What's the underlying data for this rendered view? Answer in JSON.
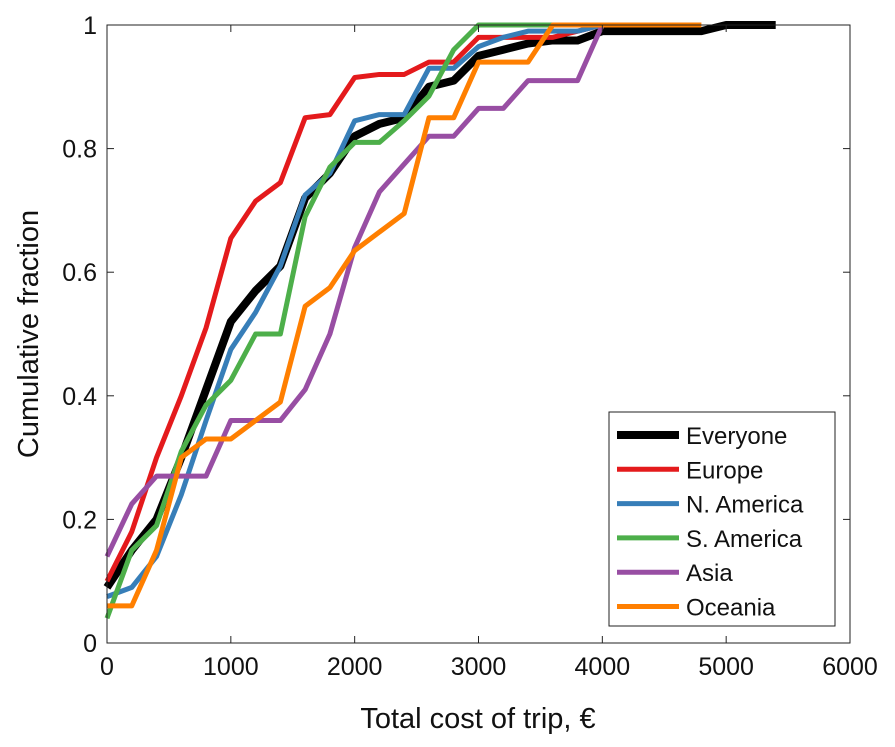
{
  "chart_data": {
    "type": "line",
    "title": "",
    "xlabel": "Total cost of trip, €",
    "ylabel": "Cumulative fraction",
    "xlim": [
      0,
      6000
    ],
    "ylim": [
      0,
      1
    ],
    "xticks": [
      0,
      1000,
      2000,
      3000,
      4000,
      5000,
      6000
    ],
    "xtick_labels": [
      "0",
      "1000",
      "2000",
      "3000",
      "4000",
      "5000",
      "6000"
    ],
    "yticks": [
      0,
      0.2,
      0.4,
      0.6,
      0.8,
      1
    ],
    "ytick_labels": [
      "0",
      "0.2",
      "0.4",
      "0.6",
      "0.8",
      "1"
    ],
    "grid": false,
    "legend_position": "bottom-right",
    "series": [
      {
        "name": "Everyone",
        "color": "#000000",
        "width": "thick",
        "x": [
          0,
          200,
          400,
          600,
          800,
          1000,
          1200,
          1400,
          1600,
          1800,
          2000,
          2200,
          2400,
          2600,
          2800,
          3000,
          3200,
          3400,
          3600,
          3800,
          4000,
          4800,
          5000,
          5400
        ],
        "y": [
          0.09,
          0.15,
          0.2,
          0.3,
          0.41,
          0.52,
          0.57,
          0.61,
          0.72,
          0.76,
          0.82,
          0.84,
          0.85,
          0.9,
          0.91,
          0.95,
          0.96,
          0.97,
          0.975,
          0.975,
          0.99,
          0.99,
          1,
          1
        ]
      },
      {
        "name": "Europe",
        "color": "#e41a1c",
        "x": [
          0,
          200,
          400,
          600,
          800,
          1000,
          1200,
          1400,
          1600,
          1800,
          2000,
          2200,
          2400,
          2600,
          2800,
          3000,
          3200,
          3400,
          3600,
          3800,
          4000
        ],
        "y": [
          0.1,
          0.18,
          0.3,
          0.4,
          0.51,
          0.655,
          0.715,
          0.745,
          0.85,
          0.855,
          0.915,
          0.92,
          0.92,
          0.94,
          0.94,
          0.98,
          0.98,
          0.98,
          0.98,
          0.99,
          1
        ]
      },
      {
        "name": "N. America",
        "color": "#377eb8",
        "x": [
          0,
          200,
          400,
          600,
          800,
          1000,
          1200,
          1400,
          1600,
          1800,
          2000,
          2200,
          2400,
          2600,
          2800,
          3000,
          3200,
          3400,
          3600,
          3800,
          4000
        ],
        "y": [
          0.075,
          0.09,
          0.14,
          0.24,
          0.36,
          0.475,
          0.535,
          0.61,
          0.725,
          0.76,
          0.845,
          0.855,
          0.855,
          0.93,
          0.93,
          0.965,
          0.98,
          0.99,
          0.99,
          0.99,
          1
        ]
      },
      {
        "name": "S. America",
        "color": "#4daf4a",
        "x": [
          0,
          200,
          400,
          600,
          800,
          1000,
          1200,
          1400,
          1600,
          1800,
          2000,
          2200,
          2400,
          2600,
          2800,
          3000,
          3600
        ],
        "y": [
          0.04,
          0.15,
          0.19,
          0.31,
          0.385,
          0.425,
          0.5,
          0.5,
          0.69,
          0.77,
          0.81,
          0.81,
          0.845,
          0.885,
          0.96,
          1,
          1
        ]
      },
      {
        "name": "Asia",
        "color": "#984ea3",
        "x": [
          0,
          200,
          400,
          600,
          800,
          1000,
          1200,
          1400,
          1600,
          1800,
          2000,
          2200,
          2400,
          2600,
          2800,
          3000,
          3200,
          3400,
          3600,
          3800,
          4000
        ],
        "y": [
          0.14,
          0.225,
          0.27,
          0.27,
          0.27,
          0.36,
          0.36,
          0.36,
          0.41,
          0.5,
          0.64,
          0.73,
          0.775,
          0.82,
          0.82,
          0.865,
          0.865,
          0.91,
          0.91,
          0.91,
          1
        ]
      },
      {
        "name": "Oceania",
        "color": "#ff7f00",
        "x": [
          0,
          200,
          400,
          600,
          800,
          1000,
          1200,
          1400,
          1600,
          1800,
          2000,
          2200,
          2400,
          2600,
          2800,
          3000,
          3200,
          3400,
          3600,
          4800
        ],
        "y": [
          0.06,
          0.06,
          0.15,
          0.3,
          0.33,
          0.33,
          0.36,
          0.39,
          0.545,
          0.575,
          0.635,
          0.665,
          0.695,
          0.85,
          0.85,
          0.94,
          0.94,
          0.94,
          1,
          1
        ]
      }
    ]
  }
}
